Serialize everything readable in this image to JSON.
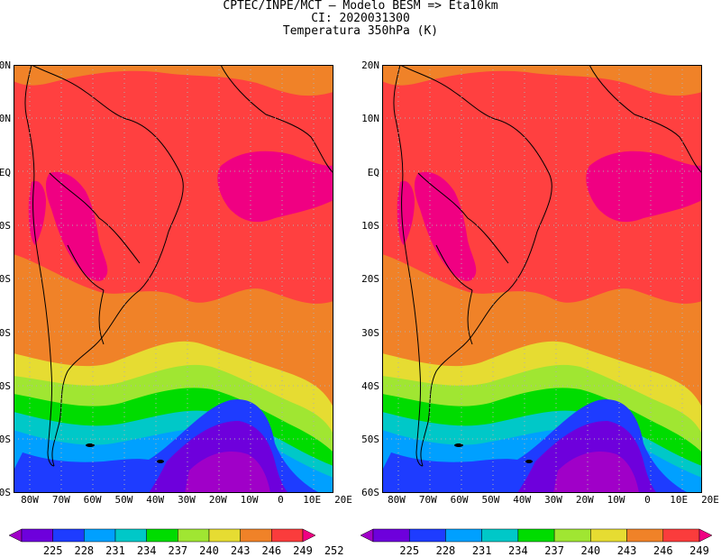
{
  "header": {
    "line1": "CPTEC/INPE/MCT –  Modelo BESM => Eta10km",
    "line2": "CI: 2020031300",
    "line3": "Temperatura 350hPa (K)"
  },
  "map": {
    "lat_labels": [
      "20N",
      "10N",
      "EQ",
      "10S",
      "20S",
      "30S",
      "40S",
      "50S",
      "60S"
    ],
    "lon_labels": [
      "80W",
      "70W",
      "60W",
      "50W",
      "40W",
      "30W",
      "20W",
      "10W",
      "0",
      "10E",
      "20E"
    ],
    "ocean_fill": "#ff4040"
  },
  "colorbar": {
    "labels": [
      "225",
      "228",
      "231",
      "234",
      "237",
      "240",
      "243",
      "246",
      "249",
      "252"
    ],
    "colors": [
      "#a000c8",
      "#6e00dc",
      "#1e3cff",
      "#00a0ff",
      "#00c8c8",
      "#00dc00",
      "#a0e632",
      "#e6dc32",
      "#f08228",
      "#fa3c3c",
      "#f00082"
    ]
  }
}
